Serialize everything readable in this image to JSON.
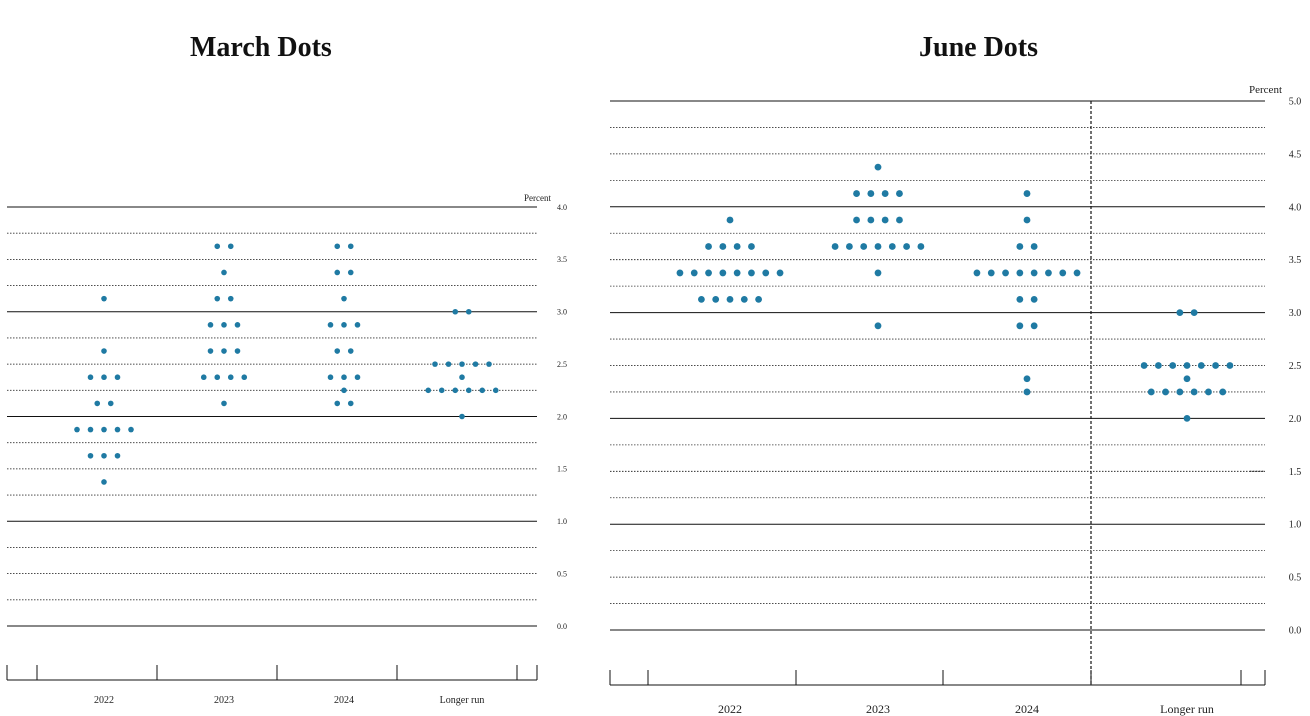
{
  "colors": {
    "dot": "#1f7aa3",
    "line": "#111111",
    "text": "#222222"
  },
  "chart_data": [
    {
      "type": "scatter",
      "title": "March Dots",
      "ylabel": "Percent",
      "ylim": [
        0,
        4
      ],
      "yticks": [
        "4.0",
        "3.5",
        "3.0",
        "2.5",
        "2.0",
        "1.5",
        "1.0",
        "0.5",
        "0.0"
      ],
      "categories": [
        "2022",
        "2023",
        "2024",
        "Longer run"
      ],
      "series": [
        {
          "category": "2022",
          "points": [
            {
              "y": 3.125,
              "count": 1
            },
            {
              "y": 2.625,
              "count": 1
            },
            {
              "y": 2.375,
              "count": 3
            },
            {
              "y": 2.125,
              "count": 2
            },
            {
              "y": 1.875,
              "count": 5
            },
            {
              "y": 1.625,
              "count": 3
            },
            {
              "y": 1.375,
              "count": 1
            }
          ]
        },
        {
          "category": "2023",
          "points": [
            {
              "y": 3.625,
              "count": 2
            },
            {
              "y": 3.375,
              "count": 1
            },
            {
              "y": 3.125,
              "count": 2
            },
            {
              "y": 2.875,
              "count": 3
            },
            {
              "y": 2.625,
              "count": 3
            },
            {
              "y": 2.375,
              "count": 4
            },
            {
              "y": 2.125,
              "count": 1
            }
          ]
        },
        {
          "category": "2024",
          "points": [
            {
              "y": 3.625,
              "count": 2
            },
            {
              "y": 3.375,
              "count": 2
            },
            {
              "y": 3.125,
              "count": 1
            },
            {
              "y": 2.875,
              "count": 3
            },
            {
              "y": 2.625,
              "count": 2
            },
            {
              "y": 2.375,
              "count": 3
            },
            {
              "y": 2.25,
              "count": 1
            },
            {
              "y": 2.125,
              "count": 2
            }
          ]
        },
        {
          "category": "Longer run",
          "points": [
            {
              "y": 3.0,
              "count": 2
            },
            {
              "y": 2.5,
              "count": 5
            },
            {
              "y": 2.375,
              "count": 1
            },
            {
              "y": 2.25,
              "count": 6
            },
            {
              "y": 2.0,
              "count": 1
            }
          ]
        }
      ]
    },
    {
      "type": "scatter",
      "title": "June Dots",
      "ylabel": "Percent",
      "ylim": [
        0,
        5
      ],
      "yticks": [
        "5.0",
        "4.5",
        "4.0",
        "3.5",
        "3.0",
        "2.5",
        "2.0",
        "1.5",
        "1.0",
        "0.5",
        "0.0"
      ],
      "categories": [
        "2022",
        "2023",
        "2024",
        "Longer run"
      ],
      "series": [
        {
          "category": "2022",
          "points": [
            {
              "y": 3.875,
              "count": 1
            },
            {
              "y": 3.625,
              "count": 4
            },
            {
              "y": 3.375,
              "count": 8
            },
            {
              "y": 3.125,
              "count": 5
            }
          ]
        },
        {
          "category": "2023",
          "points": [
            {
              "y": 4.375,
              "count": 1
            },
            {
              "y": 4.125,
              "count": 4
            },
            {
              "y": 3.875,
              "count": 4
            },
            {
              "y": 3.625,
              "count": 7
            },
            {
              "y": 3.375,
              "count": 1
            },
            {
              "y": 2.875,
              "count": 1
            }
          ]
        },
        {
          "category": "2024",
          "points": [
            {
              "y": 4.125,
              "count": 1
            },
            {
              "y": 3.875,
              "count": 1
            },
            {
              "y": 3.625,
              "count": 2
            },
            {
              "y": 3.375,
              "count": 8
            },
            {
              "y": 3.125,
              "count": 2
            },
            {
              "y": 2.875,
              "count": 2
            },
            {
              "y": 2.375,
              "count": 1
            },
            {
              "y": 2.25,
              "count": 1
            }
          ]
        },
        {
          "category": "Longer run",
          "points": [
            {
              "y": 3.0,
              "count": 2
            },
            {
              "y": 2.5,
              "count": 7
            },
            {
              "y": 2.375,
              "count": 1
            },
            {
              "y": 2.25,
              "count": 6
            },
            {
              "y": 2.0,
              "count": 1
            }
          ]
        }
      ]
    }
  ]
}
